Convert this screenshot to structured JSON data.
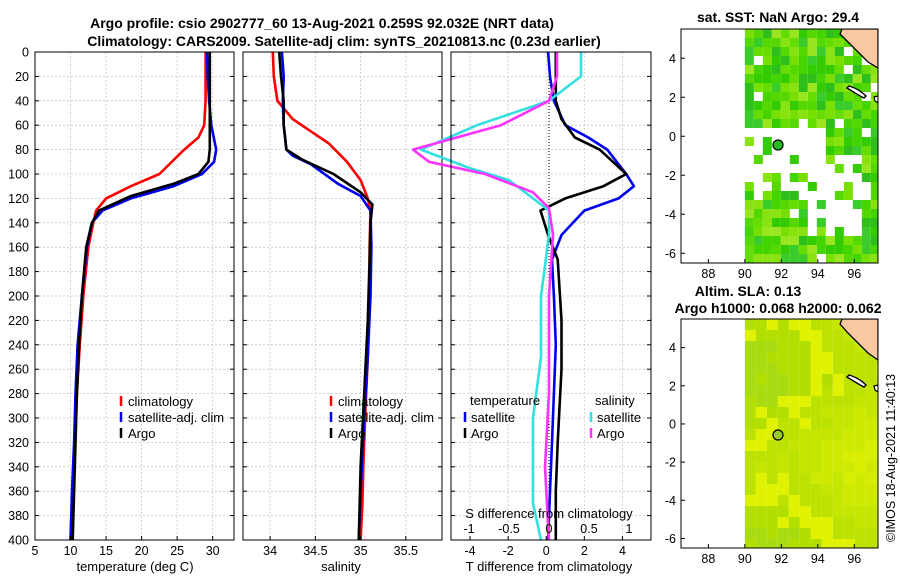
{
  "title": {
    "line1": "Argo profile: csio 2902777_60 13-Aug-2021 0.259S 92.032E (NRT data)",
    "line2": "Climatology: CARS2009. Satellite-adj clim: synTS_20210813.nc (0.23d earlier)"
  },
  "depth_ticks": [
    "0",
    "20",
    "40",
    "60",
    "80",
    "100",
    "120",
    "140",
    "160",
    "180",
    "200",
    "220",
    "240",
    "260",
    "280",
    "300",
    "320",
    "340",
    "360",
    "380",
    "400"
  ],
  "colors": {
    "climatology": "#ff0000",
    "satellite": "#0000ee",
    "argo": "#000000",
    "salinity_sat": "#33e0e0",
    "salinity_argo": "#ff33ff",
    "land": "#f9c7a0",
    "no_data": "#ffffff"
  },
  "chart_data": [
    {
      "type": "line",
      "id": "temperature",
      "xlabel": "temperature (deg C)",
      "xlim": [
        5,
        33
      ],
      "ylim": [
        400,
        0
      ],
      "xticks": [
        "5",
        "10",
        "15",
        "20",
        "25",
        "30"
      ],
      "legend": [
        "climatology",
        "satellite-adj. clim",
        "Argo"
      ],
      "series": [
        {
          "name": "climatology",
          "color": "#ff0000",
          "x": [
            29.0,
            29.0,
            29.0,
            28.8,
            28.0,
            26.0,
            22.5,
            18.5,
            15.0,
            13.6,
            13.2,
            12.5,
            11.8,
            11.3,
            10.9,
            10.6,
            10.3,
            10.0
          ],
          "depth": [
            0,
            20,
            40,
            60,
            70,
            80,
            100,
            110,
            120,
            130,
            140,
            160,
            200,
            240,
            280,
            320,
            360,
            400
          ]
        },
        {
          "name": "satellite-adj. clim",
          "color": "#0000ee",
          "x": [
            29.2,
            29.3,
            29.5,
            29.8,
            30.5,
            30.2,
            28.5,
            24.5,
            18.5,
            14.5,
            13.0,
            12.3,
            11.6,
            11.0,
            10.7,
            10.5,
            10.2,
            10.0
          ],
          "depth": [
            0,
            20,
            40,
            60,
            80,
            90,
            100,
            110,
            120,
            130,
            140,
            160,
            200,
            240,
            280,
            320,
            360,
            400
          ]
        },
        {
          "name": "Argo",
          "color": "#000000",
          "x": [
            29.6,
            29.6,
            29.6,
            29.6,
            29.6,
            29.4,
            28.0,
            24.5,
            18.5,
            14.0,
            13.0,
            12.2,
            11.6,
            11.2,
            10.9,
            10.7,
            10.5,
            10.3
          ],
          "depth": [
            0,
            20,
            40,
            60,
            80,
            90,
            100,
            108,
            118,
            130,
            140,
            160,
            200,
            240,
            280,
            320,
            360,
            400
          ]
        }
      ]
    },
    {
      "type": "line",
      "id": "salinity",
      "xlabel": "salinity",
      "xlim": [
        33.7,
        35.9
      ],
      "ylim": [
        400,
        0
      ],
      "xticks": [
        "34",
        "34.5",
        "35",
        "35.5"
      ],
      "legend": [
        "climatology",
        "satellite-adj. clim",
        "Argo"
      ],
      "series": [
        {
          "name": "climatology",
          "color": "#ff0000",
          "x": [
            34.03,
            34.04,
            34.08,
            34.25,
            34.45,
            34.65,
            34.85,
            35.0,
            35.08,
            35.11,
            35.1,
            35.1,
            35.08,
            35.05,
            35.03,
            35.02,
            35.0
          ],
          "depth": [
            0,
            20,
            40,
            55,
            65,
            75,
            90,
            105,
            120,
            130,
            160,
            200,
            250,
            300,
            340,
            370,
            400
          ]
        },
        {
          "name": "satellite-adj. clim",
          "color": "#0000ee",
          "x": [
            34.13,
            34.15,
            34.14,
            34.15,
            34.18,
            34.25,
            34.45,
            34.75,
            35.0,
            35.11,
            35.12,
            35.11,
            35.08,
            35.04,
            35.0,
            34.98
          ],
          "depth": [
            0,
            20,
            40,
            60,
            80,
            85,
            92,
            108,
            118,
            130,
            160,
            200,
            250,
            300,
            360,
            400
          ]
        },
        {
          "name": "Argo",
          "color": "#000000",
          "x": [
            34.1,
            34.12,
            34.15,
            34.15,
            34.18,
            34.35,
            34.7,
            35.0,
            35.13,
            35.11,
            35.1,
            35.08,
            35.04,
            35.0,
            34.98
          ],
          "depth": [
            0,
            20,
            40,
            60,
            80,
            88,
            100,
            115,
            125,
            140,
            170,
            220,
            280,
            340,
            400
          ]
        }
      ]
    },
    {
      "type": "line",
      "id": "difference",
      "xlabel": "T difference from climatology",
      "xlabel_top": "S difference from climatology",
      "xlim": [
        -5,
        5.5
      ],
      "ylim": [
        400,
        0
      ],
      "xticks": [
        "-4",
        "-2",
        "0",
        "2",
        "4"
      ],
      "xticks_top": [
        "-1",
        "-0.5",
        "0",
        "0.5",
        "1"
      ],
      "legend_left_title": "temperature",
      "legend_right_title": "salinity",
      "legend_left": [
        "satellite",
        "Argo"
      ],
      "legend_right": [
        "satellite",
        "Argo"
      ],
      "series": [
        {
          "name": "temperature satellite",
          "color": "#0000ee",
          "x": [
            0.1,
            0.2,
            0.4,
            1.0,
            2.2,
            3.2,
            4.2,
            4.6,
            3.8,
            2.0,
            0.8,
            0.3,
            0.4,
            0.5,
            0.4,
            0.3,
            0.2,
            0.1
          ],
          "depth": [
            0,
            20,
            40,
            60,
            70,
            80,
            100,
            110,
            120,
            130,
            150,
            170,
            200,
            240,
            280,
            320,
            360,
            400
          ]
        },
        {
          "name": "temperature Argo",
          "color": "#000000",
          "x": [
            0.5,
            0.5,
            0.5,
            0.8,
            1.5,
            2.8,
            4.2,
            3.0,
            1.0,
            -0.3,
            0.1,
            0.6,
            0.8,
            0.8,
            0.7,
            0.6,
            0.5,
            0.5
          ],
          "depth": [
            0,
            20,
            40,
            55,
            70,
            80,
            100,
            110,
            120,
            130,
            150,
            170,
            220,
            260,
            290,
            320,
            360,
            400
          ]
        },
        {
          "name": "salinity satellite",
          "color": "#33e0e0",
          "x": [
            0.4,
            0.4,
            0.0,
            -0.9,
            -1.6,
            -1.0,
            -0.5,
            -0.2,
            0.0,
            0.0,
            -0.1,
            -0.1,
            -0.2,
            -0.2,
            -0.2,
            -0.1
          ],
          "depth": [
            0,
            20,
            40,
            60,
            80,
            95,
            105,
            120,
            130,
            150,
            200,
            250,
            300,
            340,
            370,
            400
          ]
        },
        {
          "name": "salinity Argo",
          "color": "#ff33ff",
          "x": [
            0.1,
            0.1,
            0.0,
            -0.6,
            -1.7,
            -1.5,
            -0.8,
            -0.2,
            0.0,
            0.05,
            0.0,
            0.0,
            -0.05,
            0.0
          ],
          "depth": [
            0,
            20,
            40,
            60,
            80,
            90,
            100,
            115,
            128,
            150,
            200,
            280,
            340,
            400
          ]
        }
      ]
    }
  ],
  "maps": {
    "sst": {
      "title": "sat. SST: NaN Argo: 29.4",
      "xticks": [
        "88",
        "90",
        "92",
        "94",
        "96"
      ],
      "yticks": [
        "4",
        "2",
        "0",
        "-2",
        "-4",
        "-6"
      ]
    },
    "sla": {
      "title_line1": "Altim. SLA: 0.13",
      "title_line2": "Argo h1000: 0.068 h2000: 0.062",
      "xticks": [
        "88",
        "90",
        "92",
        "94",
        "96"
      ],
      "yticks": [
        "4",
        "2",
        "0",
        "-2",
        "-4",
        "-6"
      ]
    }
  },
  "credit": "©IMOS 18-Aug-2021 11:40:13"
}
